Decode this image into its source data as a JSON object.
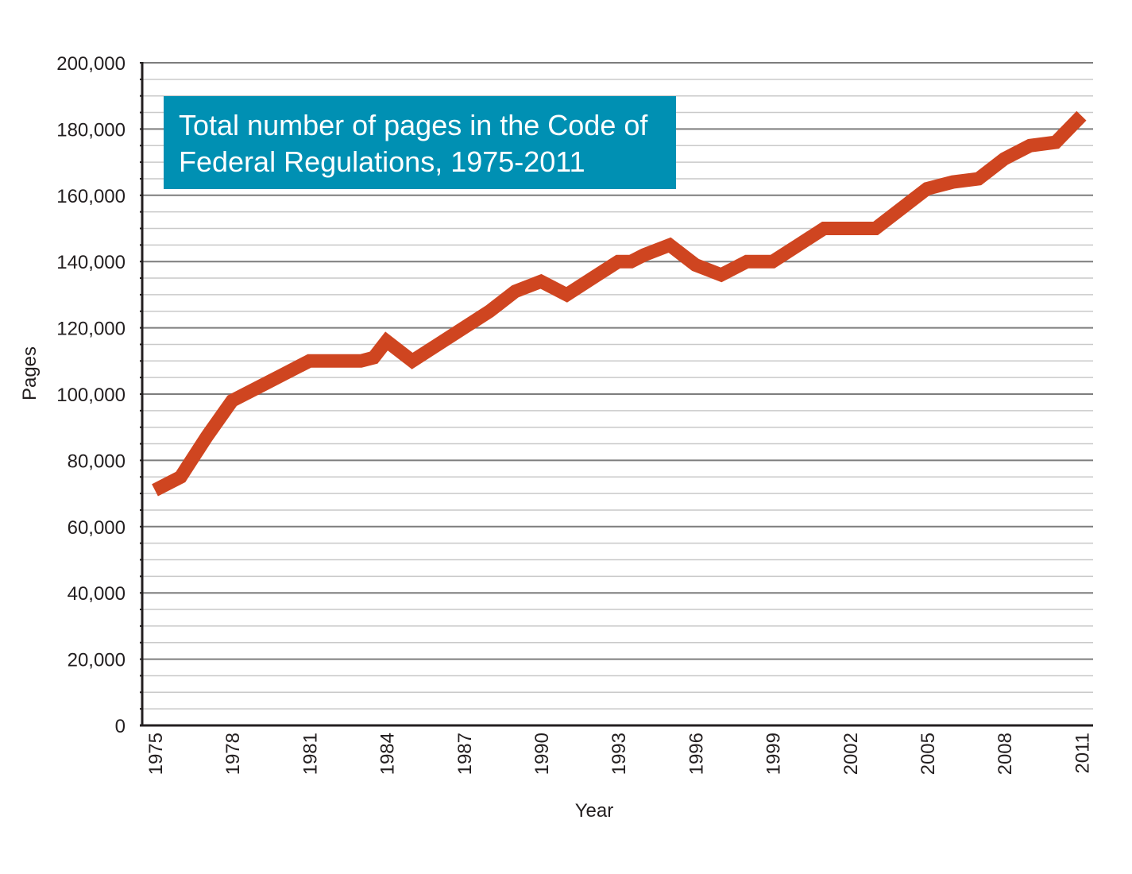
{
  "chart_data": {
    "type": "line",
    "title": "Total number of pages in the Code of Federal Regulations, 1975-2011",
    "xlabel": "Year",
    "ylabel": "Pages",
    "ylim": [
      0,
      200000
    ],
    "xlim": [
      1975,
      2012
    ],
    "y_ticks": [
      "0",
      "20,000",
      "40,000",
      "60,000",
      "80,000",
      "100,000",
      "120,000",
      "140,000",
      "160,000",
      "180,000",
      "200,000"
    ],
    "x_ticks": [
      "1975",
      "1978",
      "1981",
      "1984",
      "1987",
      "1990",
      "1993",
      "1996",
      "1999",
      "2002",
      "2005",
      "2008",
      "2011"
    ],
    "grid": true,
    "line_color": "#cf4520",
    "x": [
      1975,
      1976,
      1977,
      1978,
      1979,
      1980,
      1981,
      1982,
      1983,
      1983.5,
      1984,
      1985,
      1986,
      1987,
      1988,
      1989,
      1990,
      1991,
      1992,
      1993,
      1993.5,
      1994,
      1995,
      1996,
      1997,
      1998,
      1999,
      2000,
      2001,
      2002,
      2003,
      2004,
      2005,
      2006,
      2007,
      2008,
      2009,
      2010,
      2011
    ],
    "values": [
      71000,
      75000,
      87000,
      98000,
      102000,
      106000,
      110000,
      110000,
      110000,
      111000,
      116000,
      110000,
      115000,
      120000,
      125000,
      131000,
      134000,
      130000,
      135000,
      140000,
      140000,
      142000,
      145000,
      139000,
      136000,
      140000,
      140000,
      145000,
      150000,
      150000,
      150000,
      156000,
      162000,
      164000,
      165000,
      171000,
      175000,
      176000,
      184000
    ]
  }
}
